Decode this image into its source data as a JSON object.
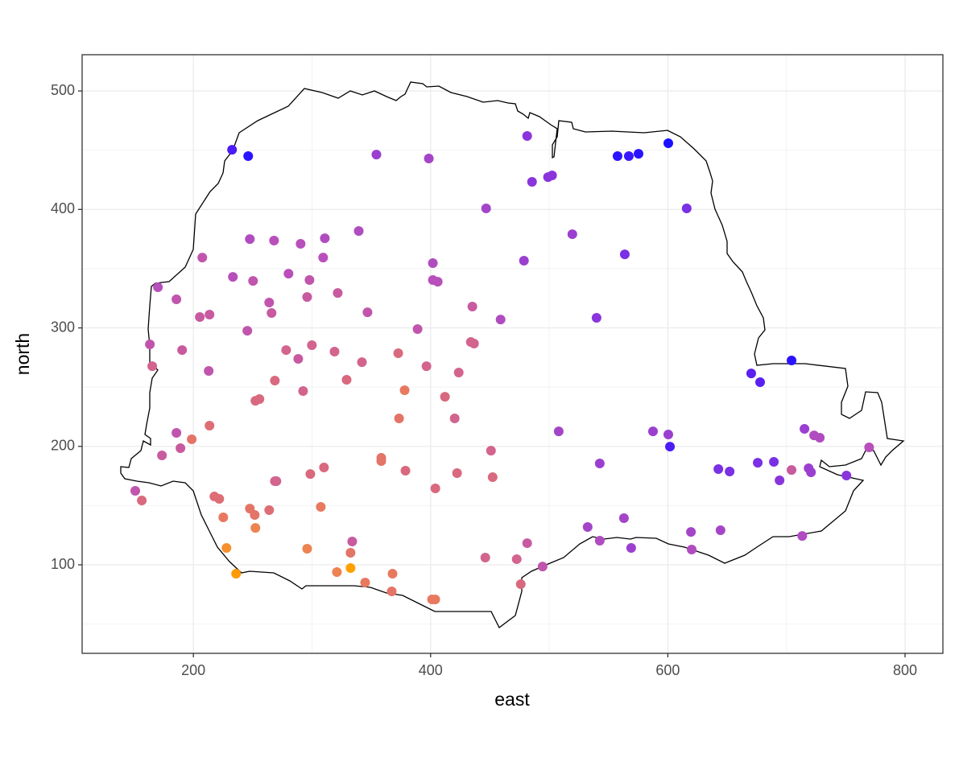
{
  "chart_data": {
    "type": "scatter",
    "xlabel": "east",
    "ylabel": "north",
    "xlim": [
      106.2,
      831.9
    ],
    "ylim": [
      25.3,
      530.6
    ],
    "xticks": [
      200,
      400,
      600,
      800
    ],
    "yticks": [
      100,
      200,
      300,
      400,
      500
    ],
    "grid": true,
    "x": [
      232.6,
      246.2,
      354.3,
      398.5,
      481.4,
      485.5,
      499,
      502.4,
      557.6,
      567.1,
      575.3,
      600.4,
      615.9,
      446.8,
      519.5,
      478.7,
      563.7,
      539.9,
      401.9,
      401.9,
      406,
      339.4,
      247.6,
      268,
      290.4,
      310.8,
      309.4,
      207.5,
      170.1,
      233.3,
      250.3,
      280.2,
      297.9,
      185.7,
      263.9,
      265.9,
      295.9,
      321.7,
      346.8,
      435.2,
      459,
      205.4,
      213.6,
      245.5,
      389,
      163.3,
      190.5,
      278.2,
      299.9,
      319,
      288.4,
      342.1,
      372.7,
      433.9,
      436.6,
      396.5,
      423.7,
      165.3,
      212.9,
      268.7,
      329.2,
      292.5,
      378.1,
      252.3,
      255.7,
      412.1,
      373.4,
      420.3,
      213.6,
      185.7,
      198.6,
      189.1,
      173.5,
      450.9,
      358.4,
      358.4,
      378.8,
      310.1,
      298.6,
      268.7,
      270,
      422.3,
      452.3,
      404,
      151,
      156.5,
      217.7,
      221.8,
      247.6,
      251.7,
      263.9,
      307.4,
      225.2,
      252.3,
      333.9,
      332.5,
      295.9,
      227.9,
      236,
      321,
      332.5,
      344.8,
      367.9,
      367.2,
      401.2,
      403.9,
      446.1,
      472.6,
      481.4,
      476,
      494.4,
      508,
      532.4,
      542.6,
      542.6,
      563,
      569.1,
      587.5,
      600.4,
      601.8,
      619.5,
      620.1,
      642.6,
      652.1,
      644.4,
      670.3,
      677.8,
      704.3,
      675.8,
      689.4,
      694.2,
      704.3,
      715.2,
      723.3,
      728.1,
      718.7,
      720.7,
      713.3,
      750.6,
      769.7
    ],
    "values": [
      450.4,
      445,
      446.3,
      443,
      462,
      423.3,
      427.3,
      428.7,
      445,
      445,
      447,
      455.9,
      400.9,
      400.9,
      379.1,
      356.7,
      362.1,
      308.5,
      354.7,
      340.4,
      339,
      381.8,
      375,
      373.7,
      371,
      375.7,
      359.4,
      359.4,
      334.3,
      343.1,
      339.7,
      345.8,
      340.4,
      324.1,
      321.4,
      312.6,
      326.1,
      329.5,
      313.2,
      318,
      307.1,
      309.2,
      311.2,
      297.6,
      299,
      286.1,
      281.3,
      281.3,
      285.4,
      280,
      273.9,
      271.1,
      278.6,
      288.1,
      286.8,
      267.7,
      262.3,
      267.7,
      263.7,
      255.5,
      256.2,
      246.7,
      247.4,
      238.5,
      239.9,
      241.9,
      223.6,
      223.6,
      217.5,
      211.4,
      206,
      198.5,
      192.4,
      196.4,
      190.3,
      187.6,
      179.5,
      182.2,
      176.7,
      170.6,
      170.6,
      177.4,
      174,
      164.5,
      162.5,
      154.3,
      157.7,
      155.7,
      147.5,
      142.1,
      146.2,
      148.9,
      140.1,
      131.2,
      119.7,
      110.2,
      113.6,
      114.3,
      92.5,
      93.9,
      97.3,
      85.1,
      92.5,
      77.6,
      70.8,
      70.8,
      106.1,
      104.8,
      118.3,
      83.7,
      98.6,
      212.7,
      131.9,
      120.4,
      185.6,
      139.4,
      114.3,
      212.7,
      210,
      199.8,
      127.8,
      112.9,
      180.8,
      178.8,
      129.2,
      261.6,
      254.2,
      272.5,
      186.2,
      186.9,
      171.3,
      180.1,
      214.8,
      209.3,
      207.3,
      181.5,
      178.1,
      124.4,
      175.4,
      199.2
    ],
    "colors": [
      "#4b1cf5",
      "#2a14ff",
      "#9b3fd0",
      "#a445c8",
      "#8a35dc",
      "#8a35dc",
      "#8a35dc",
      "#8a35dc",
      "#2a14ff",
      "#3a18ff",
      "#2a14ff",
      "#1a10ff",
      "#7a30e4",
      "#a445c8",
      "#9b3fd0",
      "#9b3fd0",
      "#7a30e4",
      "#8a35dc",
      "#b04cc0",
      "#b84fbb",
      "#b84fbb",
      "#b04cc0",
      "#b04cc0",
      "#b84fbb",
      "#b84fbb",
      "#b04cc0",
      "#b84fbb",
      "#c155ad",
      "#b84fbb",
      "#b84fbb",
      "#c155ad",
      "#b84fbb",
      "#c155ad",
      "#c155ad",
      "#c155ad",
      "#c85a9f",
      "#c85a9f",
      "#c85a9f",
      "#c155ad",
      "#c85a9f",
      "#b04cc0",
      "#c85a9f",
      "#c85a9f",
      "#c155ad",
      "#c155ad",
      "#c155ad",
      "#c85a9f",
      "#d2648e",
      "#d2648e",
      "#d2648e",
      "#c85a9f",
      "#d2648e",
      "#d9697e",
      "#d2648e",
      "#d2648e",
      "#d2648e",
      "#d2648e",
      "#d2648e",
      "#c155ad",
      "#d9697e",
      "#d9697e",
      "#d2648e",
      "#e8795f",
      "#d9697e",
      "#d9697e",
      "#d9697e",
      "#e37467",
      "#d2648e",
      "#dd6e75",
      "#c155ad",
      "#e37467",
      "#c85a9f",
      "#c85a9f",
      "#d2648e",
      "#e37467",
      "#e37467",
      "#d9697e",
      "#d9697e",
      "#d9697e",
      "#d2648e",
      "#d2648e",
      "#d9697e",
      "#d9697e",
      "#d9697e",
      "#c155ad",
      "#d9697e",
      "#dd6e75",
      "#dd6e75",
      "#e37467",
      "#e37467",
      "#dd6e75",
      "#e8795f",
      "#e8795f",
      "#ed8350",
      "#c85a9f",
      "#e37467",
      "#ed8350",
      "#f5902f",
      "#ff9900",
      "#ed8350",
      "#ffa000",
      "#e8795f",
      "#e8795f",
      "#e37467",
      "#e8795f",
      "#e8795f",
      "#d2648e",
      "#d2648e",
      "#c85a9f",
      "#d9697e",
      "#c155ad",
      "#a445c8",
      "#a445c8",
      "#b04cc0",
      "#9b3fd0",
      "#a445c8",
      "#9b3fd0",
      "#9b3fd0",
      "#9b3fd0",
      "#4b1cf5",
      "#a445c8",
      "#b04cc0",
      "#7a30e4",
      "#7a30e4",
      "#a445c8",
      "#5a20f0",
      "#5a20f0",
      "#2a14ff",
      "#7a30e4",
      "#7a30e4",
      "#8a35dc",
      "#c85a9f",
      "#9b3fd0",
      "#b04cc0",
      "#b04cc0",
      "#9b3fd0",
      "#9b3fd0",
      "#b04cc0",
      "#8a35dc",
      "#b84fbb"
    ]
  }
}
